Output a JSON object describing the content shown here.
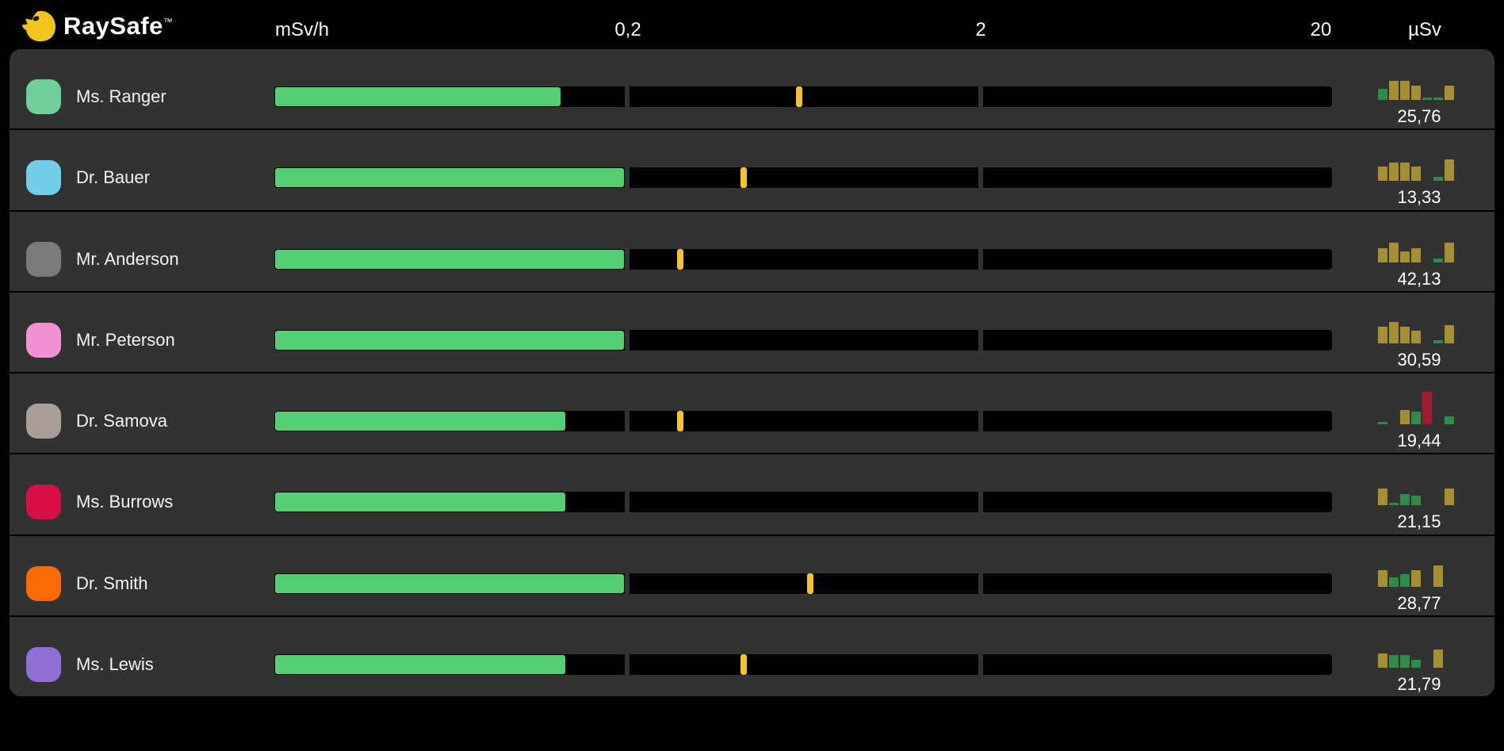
{
  "app": {
    "brand": "RaySafe",
    "trademark": "™"
  },
  "header": {
    "rate_unit": "mSv/h",
    "scale_ticks": [
      "0,2",
      "2",
      "20"
    ],
    "dose_unit": "µSv"
  },
  "colors": {
    "page_bg": "#000000",
    "row_bg": "#323232",
    "track_bg": "#000000",
    "rate_fill_green": "#54CF74",
    "marker_yellow": "#F6C230",
    "logo_yellow": "#F2C41D",
    "hist_gold": "#A68E33",
    "hist_green": "#2F8A4C",
    "hist_red": "#9E1B30"
  },
  "rows": [
    {
      "name": "Ms. Ranger",
      "badge_color": "#6FCF97",
      "dose": "25,76",
      "rate_fill_pct": 27.1,
      "marker_pct": 49.6,
      "history": [
        [
          "green",
          0.35
        ],
        [
          "gold",
          0.58
        ],
        [
          "gold",
          0.58
        ],
        [
          "gold",
          0.43
        ],
        [
          "green",
          0.08
        ],
        [
          "green",
          0.08
        ],
        [
          "gold",
          0.45
        ]
      ]
    },
    {
      "name": "Dr. Bauer",
      "badge_color": "#70CEE8",
      "dose": "13,33",
      "rate_fill_pct": 33.1,
      "marker_pct": 44.4,
      "history": [
        [
          "gold",
          0.45
        ],
        [
          "gold",
          0.55
        ],
        [
          "gold",
          0.55
        ],
        [
          "gold",
          0.45
        ],
        [
          "none",
          0
        ],
        [
          "green",
          0.12
        ],
        [
          "gold",
          0.65
        ]
      ]
    },
    {
      "name": "Mr. Anderson",
      "badge_color": "#7B7B7D",
      "dose": "42,13",
      "rate_fill_pct": 33.1,
      "marker_pct": 38.4,
      "history": [
        [
          "gold",
          0.45
        ],
        [
          "gold",
          0.6
        ],
        [
          "gold",
          0.35
        ],
        [
          "gold",
          0.45
        ],
        [
          "none",
          0
        ],
        [
          "green",
          0.12
        ],
        [
          "gold",
          0.6
        ]
      ]
    },
    {
      "name": "Mr. Peterson",
      "badge_color": "#F392D3",
      "dose": "30,59",
      "rate_fill_pct": 33.1,
      "marker_pct": null,
      "history": [
        [
          "gold",
          0.5
        ],
        [
          "gold",
          0.65
        ],
        [
          "gold",
          0.5
        ],
        [
          "gold",
          0.4
        ],
        [
          "none",
          0
        ],
        [
          "green",
          0.1
        ],
        [
          "gold",
          0.55
        ]
      ]
    },
    {
      "name": "Dr. Samova",
      "badge_color": "#A99E97",
      "dose": "19,44",
      "rate_fill_pct": 27.6,
      "marker_pct": 38.4,
      "history": [
        [
          "green",
          0.08
        ],
        [
          "none",
          0
        ],
        [
          "gold",
          0.45
        ],
        [
          "green",
          0.38
        ],
        [
          "red",
          1.0
        ],
        [
          "none",
          0
        ],
        [
          "green",
          0.25
        ]
      ]
    },
    {
      "name": "Ms. Burrows",
      "badge_color": "#D80E46",
      "dose": "21,15",
      "rate_fill_pct": 27.6,
      "marker_pct": null,
      "history": [
        [
          "gold",
          0.5
        ],
        [
          "green",
          0.08
        ],
        [
          "green",
          0.35
        ],
        [
          "green",
          0.3
        ],
        [
          "none",
          0
        ],
        [
          "none",
          0
        ],
        [
          "gold",
          0.5
        ]
      ]
    },
    {
      "name": "Dr. Smith",
      "badge_color": "#FA6B04",
      "dose": "28,77",
      "rate_fill_pct": 33.1,
      "marker_pct": 50.7,
      "history": [
        [
          "gold",
          0.5
        ],
        [
          "green",
          0.3
        ],
        [
          "green",
          0.4
        ],
        [
          "gold",
          0.5
        ],
        [
          "none",
          0
        ],
        [
          "gold",
          0.65
        ],
        [
          "none",
          0
        ]
      ]
    },
    {
      "name": "Ms. Lewis",
      "badge_color": "#9070D6",
      "dose": "21,79",
      "rate_fill_pct": 27.6,
      "marker_pct": 44.4,
      "history": [
        [
          "gold",
          0.45
        ],
        [
          "green",
          0.4
        ],
        [
          "green",
          0.4
        ],
        [
          "green",
          0.25
        ],
        [
          "none",
          0
        ],
        [
          "gold",
          0.55
        ],
        [
          "none",
          0
        ]
      ]
    }
  ]
}
